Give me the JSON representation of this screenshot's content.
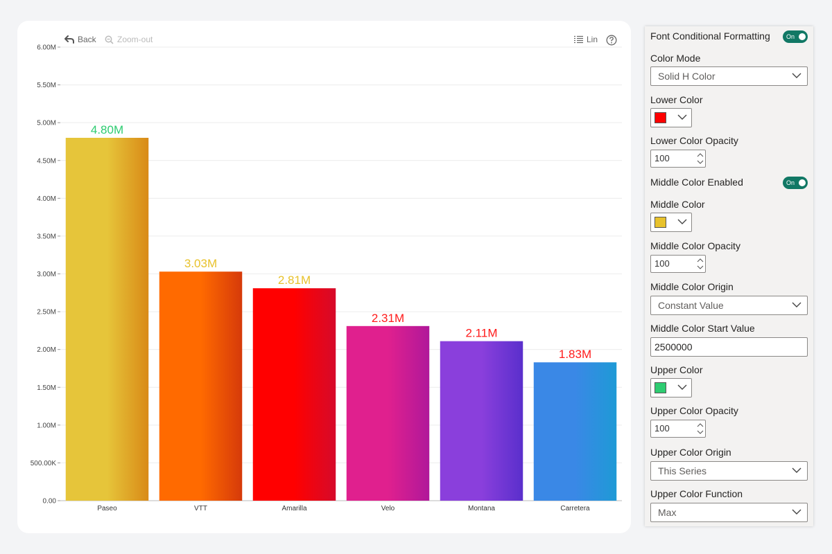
{
  "toolbar": {
    "back_label": "Back",
    "zoom_out_label": "Zoom-out",
    "scale_label": "Lin"
  },
  "chart_data": {
    "type": "bar",
    "categories": [
      "Paseo",
      "VTT",
      "Amarilla",
      "Velo",
      "Montana",
      "Carretera"
    ],
    "values": [
      4800000,
      3030000,
      2810000,
      2310000,
      2110000,
      1830000
    ],
    "data_labels": [
      "4.80M",
      "3.03M",
      "2.81M",
      "2.31M",
      "2.11M",
      "1.83M"
    ],
    "data_label_colors": [
      "#2ecc71",
      "#e8c22c",
      "#e8c22c",
      "#ff1a1a",
      "#ff1a1a",
      "#ff1a1a"
    ],
    "bar_colors": [
      [
        "#e6c53a",
        "#d98a17"
      ],
      [
        "#ff6a00",
        "#d63a0a"
      ],
      [
        "#ff0000",
        "#d60a2a"
      ],
      [
        "#e0208e",
        "#b0189a"
      ],
      [
        "#8a3fdc",
        "#5a2fcc"
      ],
      [
        "#3a88e6",
        "#1e9ad6"
      ]
    ],
    "y_ticks": [
      "0.00",
      "500.00K",
      "1.00M",
      "1.50M",
      "2.00M",
      "2.50M",
      "3.00M",
      "3.50M",
      "4.00M",
      "4.50M",
      "5.00M",
      "5.50M",
      "6.00M"
    ],
    "ylim": [
      0,
      6000000
    ],
    "grid": true,
    "title": "",
    "xlabel": "",
    "ylabel": ""
  },
  "panel": {
    "font_cond_label": "Font Conditional Formatting",
    "font_cond_toggle": "On",
    "color_mode_label": "Color Mode",
    "color_mode_value": "Solid H Color",
    "lower_color_label": "Lower Color",
    "lower_color": "#ff0000",
    "lower_opacity_label": "Lower Color Opacity",
    "lower_opacity_value": "100",
    "middle_enabled_label": "Middle Color Enabled",
    "middle_enabled_toggle": "On",
    "middle_color_label": "Middle Color",
    "middle_color": "#e8c22c",
    "middle_opacity_label": "Middle Color Opacity",
    "middle_opacity_value": "100",
    "middle_origin_label": "Middle Color Origin",
    "middle_origin_value": "Constant Value",
    "middle_start_label": "Middle Color Start Value",
    "middle_start_value": "2500000",
    "upper_color_label": "Upper Color",
    "upper_color": "#2ecc71",
    "upper_opacity_label": "Upper Color Opacity",
    "upper_opacity_value": "100",
    "upper_origin_label": "Upper Color Origin",
    "upper_origin_value": "This Series",
    "upper_function_label": "Upper Color Function",
    "upper_function_value": "Max"
  }
}
